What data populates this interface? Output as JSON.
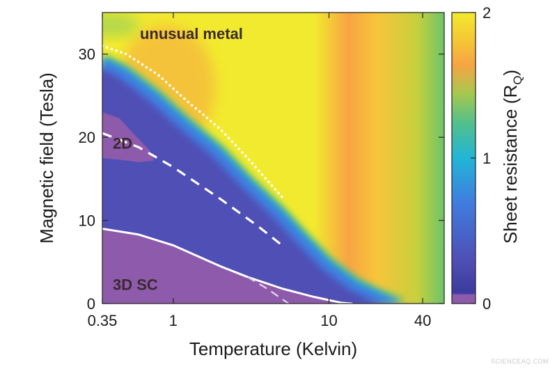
{
  "chart_data": {
    "type": "heatmap",
    "xlabel": "Temperature (Kelvin)",
    "ylabel": "Magnetic field (Tesla)",
    "x_scale": "log",
    "xlim": [
      0.35,
      55
    ],
    "ylim": [
      0,
      35
    ],
    "x_ticks": [
      {
        "value": 0.35,
        "label": "0.35"
      },
      {
        "value": 1,
        "label": "1"
      },
      {
        "value": 10,
        "label": "10"
      },
      {
        "value": 40,
        "label": "40"
      }
    ],
    "y_ticks": [
      {
        "value": 0,
        "label": "0"
      },
      {
        "value": 10,
        "label": "10"
      },
      {
        "value": 20,
        "label": "20"
      },
      {
        "value": 30,
        "label": "30"
      }
    ],
    "colorbar": {
      "label": "Sheet resistance (R",
      "label_sub": "Q",
      "label_close": ")",
      "range": [
        0,
        2
      ],
      "ticks": [
        {
          "value": 0,
          "label": "0"
        },
        {
          "value": 1,
          "label": "1"
        },
        {
          "value": 2,
          "label": "2"
        }
      ],
      "colors": {
        "violet": "#8e5aab",
        "indigo": "#4f4fb5",
        "blue": "#3f7ee0",
        "cyan": "#22b5d6",
        "green": "#6fc46a",
        "orange": "#f7a443",
        "yellow": "#f2ea2e"
      }
    },
    "regions": [
      {
        "label": "unusual metal",
        "T": 0.38,
        "B": 32.5
      },
      {
        "label": "2D",
        "T": 0.38,
        "B": 19.3
      },
      {
        "label": "3D SC",
        "T": 0.38,
        "B": 2.3
      }
    ],
    "series": [
      {
        "style": "solid",
        "color": "#ffffff",
        "points": [
          [
            0.35,
            9.0
          ],
          [
            0.6,
            8.3
          ],
          [
            1.0,
            7.0
          ],
          [
            2.0,
            4.5
          ],
          [
            3.0,
            3.2
          ],
          [
            5.0,
            1.8
          ],
          [
            8.0,
            0.8
          ],
          [
            12.0,
            0.1
          ],
          [
            14.0,
            0
          ]
        ]
      },
      {
        "style": "dashed",
        "color": "#ffffff",
        "points": [
          [
            0.35,
            20.5
          ],
          [
            0.6,
            18.8
          ],
          [
            1.0,
            16.4
          ],
          [
            2.0,
            12.6
          ],
          [
            3.5,
            9.3
          ],
          [
            5.0,
            7.0
          ]
        ]
      },
      {
        "style": "dotted",
        "color": "#ffffff",
        "points": [
          [
            0.35,
            31.0
          ],
          [
            0.5,
            30.0
          ],
          [
            0.8,
            27.5
          ],
          [
            1.2,
            24.5
          ],
          [
            2.0,
            21.0
          ],
          [
            3.0,
            17.5
          ],
          [
            5.0,
            12.8
          ]
        ]
      },
      {
        "style": "dashed-faint",
        "color": "#e6d0ee",
        "points": [
          [
            3.0,
            3.2
          ],
          [
            4.0,
            1.8
          ],
          [
            5.5,
            0
          ]
        ]
      }
    ],
    "heatmap_zones": {
      "metal_boundary": [
        [
          0.35,
          29.5
        ],
        [
          0.5,
          28.0
        ],
        [
          0.8,
          25.0
        ],
        [
          1.2,
          22.0
        ],
        [
          2.0,
          18.5
        ],
        [
          3.0,
          15.0
        ],
        [
          5.0,
          11.0
        ],
        [
          7.0,
          8.0
        ],
        [
          10.0,
          5.0
        ],
        [
          15.0,
          2.5
        ],
        [
          22.0,
          1.0
        ],
        [
          30.0,
          0
        ]
      ],
      "sc_top": [
        [
          0.35,
          9.0
        ],
        [
          0.6,
          8.3
        ],
        [
          1.0,
          7.0
        ],
        [
          2.0,
          4.5
        ],
        [
          3.0,
          3.2
        ],
        [
          5.0,
          1.8
        ],
        [
          8.0,
          0.8
        ],
        [
          12.0,
          0.1
        ],
        [
          14.0,
          0
        ]
      ],
      "lobe_2d": [
        [
          0.35,
          23.0
        ],
        [
          0.45,
          22.3
        ],
        [
          0.55,
          20.5
        ],
        [
          0.7,
          18.5
        ],
        [
          0.75,
          17.2
        ],
        [
          0.6,
          17.0
        ],
        [
          0.45,
          17.3
        ],
        [
          0.35,
          17.5
        ]
      ]
    }
  },
  "watermark": "SCIENCEAQ.COM"
}
